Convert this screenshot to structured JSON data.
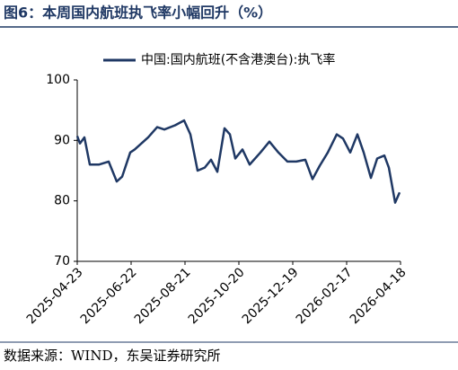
{
  "chart_data": {
    "type": "line",
    "title": "图6：本周国内航班执飞率小幅回升（%）",
    "source": "数据来源：WIND，东吴证券研究所",
    "x": [
      "2025-04-23",
      "2025-04-26",
      "2025-05-01",
      "2025-05-07",
      "2025-05-17",
      "2025-05-28",
      "2025-06-06",
      "2025-06-12",
      "2025-06-21",
      "2025-06-26",
      "2025-07-11",
      "2025-07-21",
      "2025-07-29",
      "2025-08-10",
      "2025-08-20",
      "2025-08-27",
      "2025-09-04",
      "2025-09-12",
      "2025-09-19",
      "2025-09-26",
      "2025-10-04",
      "2025-10-10",
      "2025-10-16",
      "2025-10-24",
      "2025-11-01",
      "2025-11-13",
      "2025-11-23",
      "2025-12-03",
      "2025-12-13",
      "2025-12-23",
      "2026-01-02",
      "2026-01-10",
      "2026-01-18",
      "2026-01-27",
      "2026-02-06",
      "2026-02-13",
      "2026-02-21",
      "2026-03-01",
      "2026-03-08",
      "2026-03-16",
      "2026-03-23",
      "2026-03-31",
      "2026-04-05",
      "2026-04-12",
      "2026-04-17"
    ],
    "series": [
      {
        "name": "中国:国内航班(不含港澳台):执飞率",
        "color": "#1f3864",
        "values": [
          90.7,
          89.5,
          90.5,
          86,
          86,
          86.5,
          83.2,
          84,
          88,
          88.5,
          90.5,
          92.2,
          91.8,
          92.5,
          93.3,
          91,
          85,
          85.5,
          86.8,
          84.8,
          92,
          91,
          87,
          88.5,
          86,
          88,
          89.8,
          88,
          86.5,
          86.5,
          86.8,
          83.6,
          85.8,
          88,
          91,
          90.3,
          88,
          91,
          88,
          83.8,
          87,
          87.5,
          85.5,
          79.7,
          81.4
        ]
      }
    ],
    "xlim": [
      "2025-04-23",
      "2026-04-18"
    ],
    "xticks": [
      "2025-04-23",
      "2025-06-22",
      "2025-08-21",
      "2025-10-20",
      "2025-12-19",
      "2026-02-17",
      "2026-04-18"
    ],
    "ylim": [
      70,
      100
    ],
    "yticks": [
      70,
      80,
      90,
      100
    ],
    "grid": false,
    "legend": "top"
  }
}
